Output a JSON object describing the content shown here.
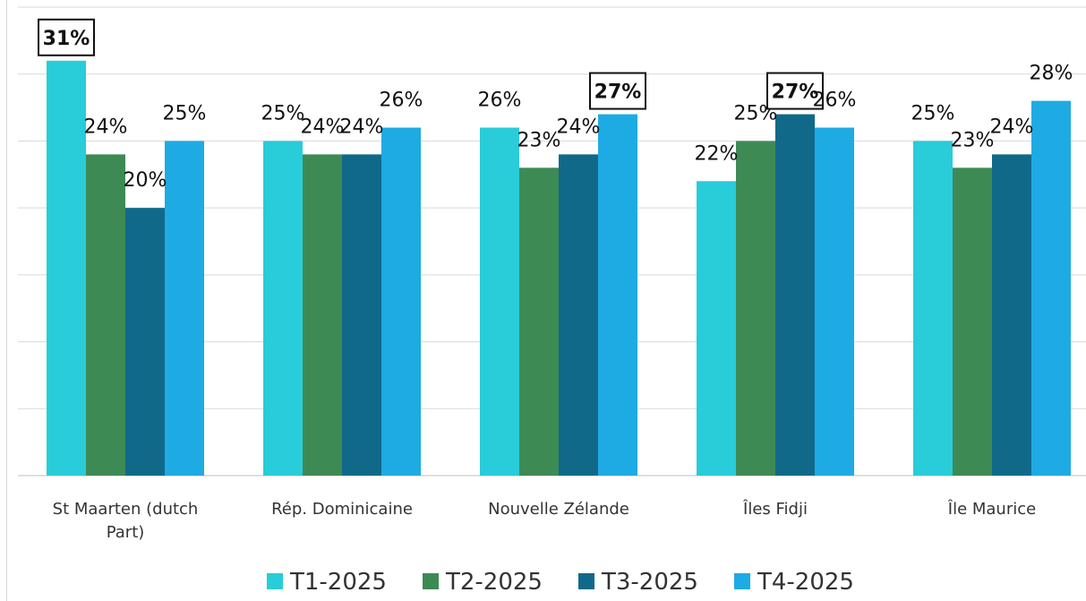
{
  "chart_data": {
    "type": "bar",
    "categories": [
      [
        "St Maarten (dutch",
        "Part)"
      ],
      [
        "Rép. Dominicaine"
      ],
      [
        "Nouvelle Zélande"
      ],
      [
        "Îles Fidji"
      ],
      [
        "Île Maurice"
      ]
    ],
    "series": [
      {
        "name": "T1-2025",
        "color": "#29CCD9",
        "values": [
          31,
          25,
          26,
          22,
          25
        ],
        "labels": [
          "31%",
          "25%",
          "26%",
          "22%",
          "25%"
        ]
      },
      {
        "name": "T2-2025",
        "color": "#3E8A55",
        "values": [
          24,
          24,
          23,
          25,
          23
        ],
        "labels": [
          "24%",
          "24%",
          "23%",
          "25%",
          "23%"
        ]
      },
      {
        "name": "T3-2025",
        "color": "#11698A",
        "values": [
          20,
          24,
          24,
          27,
          24
        ],
        "labels": [
          "20%",
          "24%",
          "24%",
          "27%",
          "24%"
        ]
      },
      {
        "name": "T4-2025",
        "color": "#1EABE3",
        "values": [
          25,
          26,
          27,
          26,
          28
        ],
        "labels": [
          "25%",
          "26%",
          "27%",
          "26%",
          "28%"
        ]
      }
    ],
    "highlighted": [
      [
        0,
        0
      ],
      [
        3,
        2
      ],
      [
        2,
        3
      ],
      [
        4,
        3
      ]
    ],
    "ylim": [
      0,
      35
    ],
    "grid": true,
    "legend_position": "bottom",
    "title": "",
    "xlabel": "",
    "ylabel": ""
  }
}
